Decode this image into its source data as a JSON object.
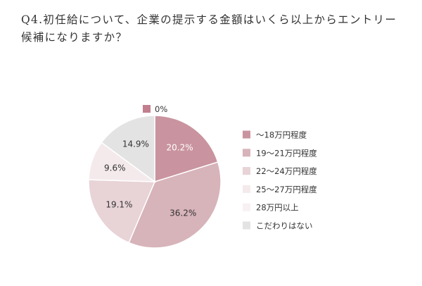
{
  "question": "Q4.初任給について、企業の提示する金額はいくら以上からエントリー候補になりますか？",
  "chart_data": {
    "type": "pie",
    "categories": [
      "〜18万円程度",
      "19〜21万円程度",
      "22〜24万円程度",
      "25〜27万円程度",
      "28万円以上",
      "こだわりはない"
    ],
    "values": [
      20.2,
      36.2,
      19.1,
      9.6,
      0,
      14.9
    ],
    "value_labels": [
      "20.2%",
      "36.2%",
      "19.1%",
      "9.6%",
      "0%",
      "14.9%"
    ],
    "colors": [
      "#c9949f",
      "#d7b3ba",
      "#e8d3d7",
      "#f4eaec",
      "#f8f0f2",
      "#e3e3e3"
    ],
    "label_colors": [
      "#ffffff",
      "#333333",
      "#333333",
      "#333333",
      "#333333",
      "#333333"
    ],
    "legend": {
      "position": "right",
      "items": [
        {
          "label": "〜18万円程度",
          "color": "#c9949f"
        },
        {
          "label": "19〜21万円程度",
          "color": "#d7b3ba"
        },
        {
          "label": "22〜24万円程度",
          "color": "#e8d3d7"
        },
        {
          "label": "25〜27万円程度",
          "color": "#f4eaec"
        },
        {
          "label": "28万円以上",
          "color": "#f8f0f2"
        },
        {
          "label": "こだわりはない",
          "color": "#e3e3e3"
        }
      ]
    },
    "zero_callout": {
      "label": "0%",
      "color": "#c27e8c"
    }
  }
}
